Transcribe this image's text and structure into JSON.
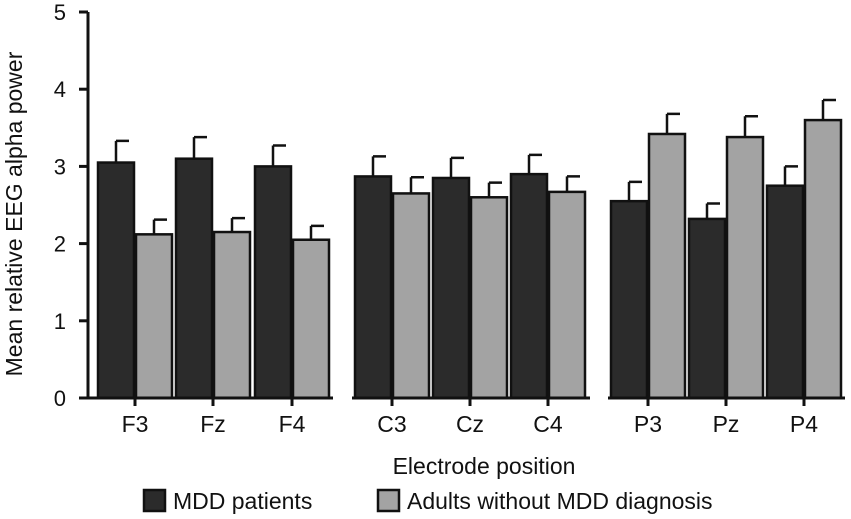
{
  "chart_data": {
    "type": "bar",
    "title": "",
    "xlabel": "Electrode position",
    "ylabel": "Mean relative EEG alpha power",
    "ylim": [
      0,
      5
    ],
    "yticks": [
      0,
      1,
      2,
      3,
      4,
      5
    ],
    "categories": [
      "F3",
      "Fz",
      "F4",
      "C3",
      "Cz",
      "C4",
      "P3",
      "Pz",
      "P4"
    ],
    "groups": [
      [
        "F3",
        "Fz",
        "F4"
      ],
      [
        "C3",
        "Cz",
        "C4"
      ],
      [
        "P3",
        "Pz",
        "P4"
      ]
    ],
    "series": [
      {
        "name": "MDD patients",
        "color": "#2b2b2b",
        "values": [
          3.05,
          3.1,
          3.0,
          2.87,
          2.85,
          2.9,
          2.55,
          2.32,
          2.75
        ],
        "errors": [
          0.28,
          0.28,
          0.27,
          0.26,
          0.26,
          0.25,
          0.25,
          0.2,
          0.25
        ]
      },
      {
        "name": "Adults without MDD diagnosis",
        "color": "#a3a3a3",
        "values": [
          2.12,
          2.15,
          2.05,
          2.65,
          2.6,
          2.67,
          3.42,
          3.38,
          3.6
        ],
        "errors": [
          0.19,
          0.18,
          0.18,
          0.21,
          0.19,
          0.2,
          0.26,
          0.27,
          0.26
        ]
      }
    ]
  }
}
